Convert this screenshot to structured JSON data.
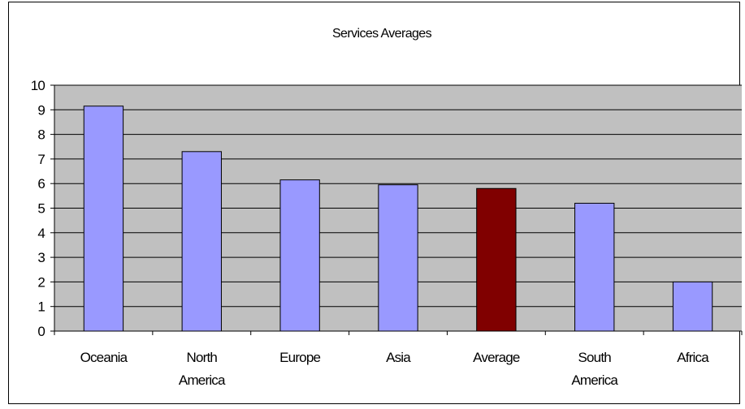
{
  "chart_data": {
    "type": "bar",
    "title": "Services Averages",
    "xlabel": "",
    "ylabel": "",
    "ylim": [
      0,
      10
    ],
    "yticks": [
      0,
      1,
      2,
      3,
      4,
      5,
      6,
      7,
      8,
      9,
      10
    ],
    "grid": true,
    "legend": "none",
    "plot_background": "#c0c0c0",
    "categories": [
      [
        "Oceania"
      ],
      [
        "North",
        "America"
      ],
      [
        "Europe"
      ],
      [
        "Asia"
      ],
      [
        "Average"
      ],
      [
        "South",
        "America"
      ],
      [
        "Africa"
      ]
    ],
    "values": [
      9.15,
      7.3,
      6.15,
      5.95,
      5.8,
      5.2,
      2.0
    ],
    "bar_colors": [
      "#9999ff",
      "#9999ff",
      "#9999ff",
      "#9999ff",
      "#800000",
      "#9999ff",
      "#9999ff"
    ]
  }
}
